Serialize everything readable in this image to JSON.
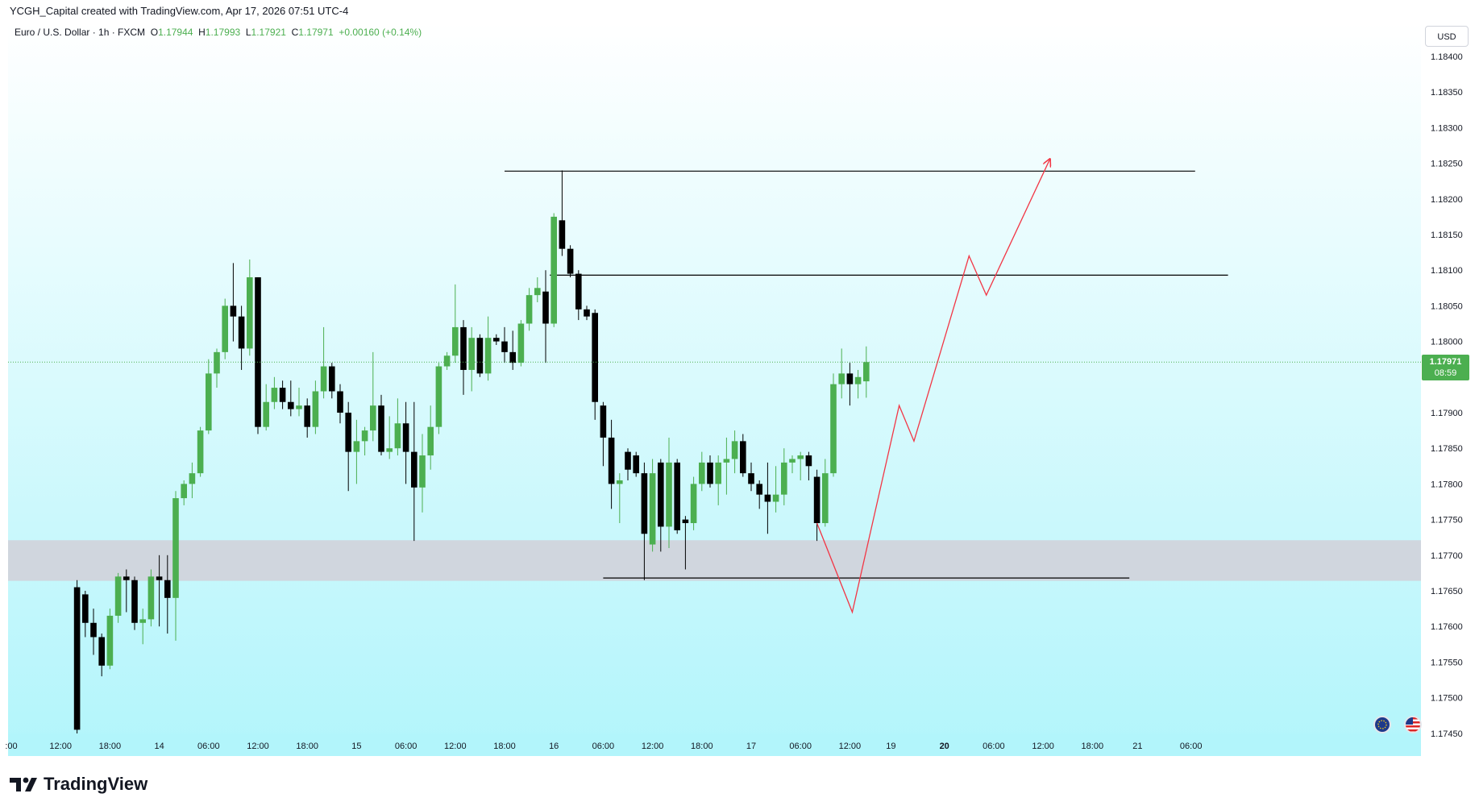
{
  "header": {
    "attribution": "YCGH_Capital created with TradingView.com, Apr 17, 2026 07:51 UTC-4"
  },
  "legend": {
    "symbol": "Euro / U.S. Dollar · 1h · FXCM",
    "o_label": "O",
    "o_value": "1.17944",
    "h_label": "H",
    "h_value": "1.17993",
    "l_label": "L",
    "l_value": "1.17921",
    "c_label": "C",
    "c_value": "1.17971",
    "change": "+0.00160 (+0.14%)"
  },
  "currency_button": "USD",
  "last_price": {
    "price": "1.17971",
    "countdown": "08:59"
  },
  "brand": "TradingView",
  "colors": {
    "up": "#4caf50",
    "down": "#000000",
    "bg_top": "#ffffff",
    "bg_bottom": "#b2f5fb",
    "zone": "#d1d4dc",
    "projection": "#f23645",
    "level": "#000000"
  },
  "chart_data": {
    "type": "candlestick",
    "symbol": "EURUSD",
    "timeframe": "1h",
    "ylim": [
      1.1745,
      1.1842
    ],
    "y_ticks": [
      "1.18400",
      "1.18350",
      "1.18300",
      "1.18250",
      "1.18200",
      "1.18150",
      "1.18100",
      "1.18050",
      "1.18000",
      "1.17950",
      "1.17900",
      "1.17850",
      "1.17800",
      "1.17750",
      "1.17700",
      "1.17650",
      "1.17600",
      "1.17550",
      "1.17500",
      "1.17450"
    ],
    "x_ticks": [
      {
        "label": ":00",
        "bar": 0
      },
      {
        "label": "12:00",
        "bar": 6
      },
      {
        "label": "18:00",
        "bar": 12
      },
      {
        "label": "14",
        "bar": 18
      },
      {
        "label": "06:00",
        "bar": 24
      },
      {
        "label": "12:00",
        "bar": 30
      },
      {
        "label": "18:00",
        "bar": 36
      },
      {
        "label": "15",
        "bar": 42
      },
      {
        "label": "06:00",
        "bar": 48
      },
      {
        "label": "12:00",
        "bar": 54
      },
      {
        "label": "18:00",
        "bar": 60
      },
      {
        "label": "16",
        "bar": 66
      },
      {
        "label": "06:00",
        "bar": 72
      },
      {
        "label": "12:00",
        "bar": 78
      },
      {
        "label": "18:00",
        "bar": 84
      },
      {
        "label": "17",
        "bar": 90
      },
      {
        "label": "06:00",
        "bar": 96
      },
      {
        "label": "12:00",
        "bar": 102
      },
      {
        "label": "19",
        "bar": 107
      },
      {
        "label": "20",
        "bar": 113.5
      },
      {
        "label": "06:00",
        "bar": 119.5
      },
      {
        "label": "12:00",
        "bar": 125.5
      },
      {
        "label": "18:00",
        "bar": 131.5
      },
      {
        "label": "21",
        "bar": 137
      },
      {
        "label": "06:00",
        "bar": 143.5
      }
    ],
    "candles": [
      [
        8,
        1.17655,
        1.17665,
        1.17445,
        1.17455
      ],
      [
        9,
        1.17645,
        1.1765,
        1.17585,
        1.17605
      ],
      [
        10,
        1.17605,
        1.17625,
        1.1756,
        1.17585
      ],
      [
        11,
        1.17585,
        1.1759,
        1.1753,
        1.17545
      ],
      [
        12,
        1.17545,
        1.17625,
        1.1754,
        1.17615
      ],
      [
        13,
        1.17615,
        1.17675,
        1.17605,
        1.1767
      ],
      [
        14,
        1.1767,
        1.1768,
        1.1762,
        1.17665
      ],
      [
        15,
        1.17665,
        1.1767,
        1.17595,
        1.17605
      ],
      [
        16,
        1.17605,
        1.17625,
        1.17575,
        1.1761
      ],
      [
        17,
        1.1761,
        1.1768,
        1.176,
        1.1767
      ],
      [
        18,
        1.1767,
        1.177,
        1.176,
        1.17665
      ],
      [
        19,
        1.17665,
        1.177,
        1.1759,
        1.1764
      ],
      [
        20,
        1.1764,
        1.1779,
        1.1758,
        1.1778
      ],
      [
        21,
        1.1778,
        1.17805,
        1.1777,
        1.178
      ],
      [
        22,
        1.178,
        1.1783,
        1.1778,
        1.17815
      ],
      [
        23,
        1.17815,
        1.1788,
        1.1781,
        1.17875
      ],
      [
        24,
        1.17875,
        1.17975,
        1.1787,
        1.17955
      ],
      [
        25,
        1.17955,
        1.1799,
        1.17935,
        1.17985
      ],
      [
        26,
        1.17985,
        1.1806,
        1.17975,
        1.1805
      ],
      [
        27,
        1.1805,
        1.1811,
        1.18,
        1.18035
      ],
      [
        28,
        1.18035,
        1.1805,
        1.1796,
        1.1799
      ],
      [
        29,
        1.1799,
        1.18115,
        1.1798,
        1.1809
      ],
      [
        30,
        1.1809,
        1.1809,
        1.1787,
        1.1788
      ],
      [
        31,
        1.1788,
        1.1794,
        1.17875,
        1.17915
      ],
      [
        32,
        1.17915,
        1.1795,
        1.17905,
        1.17935
      ],
      [
        33,
        1.17935,
        1.17945,
        1.17905,
        1.17915
      ],
      [
        34,
        1.17915,
        1.17945,
        1.17895,
        1.17905
      ],
      [
        35,
        1.17905,
        1.17935,
        1.17895,
        1.1791
      ],
      [
        36,
        1.1791,
        1.1792,
        1.17865,
        1.1788
      ],
      [
        37,
        1.1788,
        1.17945,
        1.1787,
        1.1793
      ],
      [
        38,
        1.1793,
        1.1802,
        1.1792,
        1.17965
      ],
      [
        39,
        1.17965,
        1.1797,
        1.1792,
        1.1793
      ],
      [
        40,
        1.1793,
        1.1794,
        1.17885,
        1.179
      ],
      [
        41,
        1.179,
        1.17915,
        1.1779,
        1.17845
      ],
      [
        42,
        1.17845,
        1.1789,
        1.178,
        1.1786
      ],
      [
        43,
        1.1786,
        1.1788,
        1.1784,
        1.17875
      ],
      [
        44,
        1.17875,
        1.17985,
        1.1786,
        1.1791
      ],
      [
        45,
        1.1791,
        1.17925,
        1.1784,
        1.17845
      ],
      [
        46,
        1.17845,
        1.17895,
        1.17835,
        1.1785
      ],
      [
        47,
        1.1785,
        1.1792,
        1.1784,
        1.17885
      ],
      [
        48,
        1.17885,
        1.17915,
        1.178,
        1.17845
      ],
      [
        49,
        1.17845,
        1.17915,
        1.1772,
        1.17795
      ],
      [
        50,
        1.17795,
        1.1787,
        1.1776,
        1.1784
      ],
      [
        51,
        1.1784,
        1.1791,
        1.1782,
        1.1788
      ],
      [
        52,
        1.1788,
        1.1797,
        1.1787,
        1.17965
      ],
      [
        53,
        1.17965,
        1.17985,
        1.1796,
        1.1798
      ],
      [
        54,
        1.1798,
        1.1808,
        1.1797,
        1.1802
      ],
      [
        55,
        1.1802,
        1.1803,
        1.17925,
        1.1796
      ],
      [
        56,
        1.1796,
        1.1802,
        1.1793,
        1.18005
      ],
      [
        57,
        1.18005,
        1.1801,
        1.1795,
        1.17955
      ],
      [
        58,
        1.17955,
        1.18035,
        1.17945,
        1.18005
      ],
      [
        59,
        1.18005,
        1.1801,
        1.17995,
        1.18
      ],
      [
        60,
        1.18,
        1.1802,
        1.1797,
        1.17985
      ],
      [
        61,
        1.17985,
        1.18015,
        1.1796,
        1.1797
      ],
      [
        62,
        1.1797,
        1.1803,
        1.17965,
        1.18025
      ],
      [
        63,
        1.18025,
        1.18075,
        1.18015,
        1.18065
      ],
      [
        64,
        1.18065,
        1.1809,
        1.18055,
        1.18075
      ],
      [
        65,
        1.1807,
        1.181,
        1.1797,
        1.18025
      ],
      [
        66,
        1.18025,
        1.1818,
        1.1802,
        1.18175
      ],
      [
        67,
        1.1817,
        1.1824,
        1.1812,
        1.1813
      ],
      [
        68,
        1.1813,
        1.18135,
        1.1809,
        1.18095
      ],
      [
        69,
        1.18095,
        1.181,
        1.1803,
        1.18045
      ],
      [
        70,
        1.18045,
        1.1805,
        1.1803,
        1.18035
      ],
      [
        71,
        1.1804,
        1.18045,
        1.1789,
        1.17915
      ],
      [
        72,
        1.1791,
        1.17915,
        1.17825,
        1.17865
      ],
      [
        73,
        1.17865,
        1.1789,
        1.17765,
        1.178
      ],
      [
        74,
        1.178,
        1.17815,
        1.17745,
        1.17805
      ],
      [
        75,
        1.17845,
        1.1785,
        1.17805,
        1.1782
      ],
      [
        76,
        1.1784,
        1.17845,
        1.1781,
        1.17815
      ],
      [
        77,
        1.17815,
        1.1783,
        1.17665,
        1.1773
      ],
      [
        78,
        1.17715,
        1.17835,
        1.17705,
        1.17815
      ],
      [
        79,
        1.1783,
        1.17835,
        1.17705,
        1.1774
      ],
      [
        80,
        1.1774,
        1.17865,
        1.1771,
        1.1783
      ],
      [
        81,
        1.1783,
        1.17835,
        1.1773,
        1.17735
      ],
      [
        82,
        1.1775,
        1.17755,
        1.1768,
        1.17745
      ],
      [
        83,
        1.17745,
        1.1781,
        1.17735,
        1.178
      ],
      [
        84,
        1.178,
        1.17845,
        1.1779,
        1.1783
      ],
      [
        85,
        1.1783,
        1.1784,
        1.17795,
        1.178
      ],
      [
        86,
        1.178,
        1.1784,
        1.1777,
        1.1783
      ],
      [
        87,
        1.1783,
        1.17865,
        1.17785,
        1.17835
      ],
      [
        88,
        1.17835,
        1.17875,
        1.17815,
        1.1786
      ],
      [
        89,
        1.1786,
        1.1787,
        1.1781,
        1.17815
      ],
      [
        90,
        1.17815,
        1.1783,
        1.1779,
        1.178
      ],
      [
        91,
        1.178,
        1.17805,
        1.17765,
        1.17785
      ],
      [
        92,
        1.17785,
        1.1783,
        1.1773,
        1.17775
      ],
      [
        93,
        1.17775,
        1.17825,
        1.1776,
        1.17785
      ],
      [
        94,
        1.17785,
        1.1785,
        1.1777,
        1.1783
      ],
      [
        95,
        1.1783,
        1.1784,
        1.17815,
        1.17835
      ],
      [
        96,
        1.17835,
        1.17845,
        1.17805,
        1.1784
      ],
      [
        97,
        1.1784,
        1.17845,
        1.17805,
        1.17825
      ],
      [
        98,
        1.1781,
        1.1782,
        1.1772,
        1.17745
      ],
      [
        99,
        1.17745,
        1.17835,
        1.1774,
        1.17815
      ],
      [
        100,
        1.17815,
        1.17955,
        1.1781,
        1.1794
      ],
      [
        101,
        1.1794,
        1.1799,
        1.1792,
        1.17955
      ],
      [
        102,
        1.17955,
        1.1797,
        1.1791,
        1.1794
      ],
      [
        103,
        1.1794,
        1.1796,
        1.1792,
        1.1795
      ],
      [
        104,
        1.17944,
        1.17993,
        1.17921,
        1.17971
      ]
    ],
    "horizontal_levels": [
      {
        "price": 1.18239,
        "from_bar": 60,
        "to_bar": 144
      },
      {
        "price": 1.18093,
        "from_bar": 65.5,
        "to_bar": 148
      },
      {
        "price": 1.17668,
        "from_bar": 72,
        "to_bar": 136
      }
    ],
    "demand_zone": {
      "from_price": 1.17664,
      "to_price": 1.17721
    },
    "projection_path": [
      [
        98,
        1.17745
      ],
      [
        102.3,
        1.1762
      ],
      [
        108,
        1.1791
      ],
      [
        109.8,
        1.1786
      ],
      [
        116.5,
        1.1812
      ],
      [
        118.6,
        1.18065
      ],
      [
        126.3,
        1.18255
      ]
    ],
    "last_price": 1.17971
  }
}
